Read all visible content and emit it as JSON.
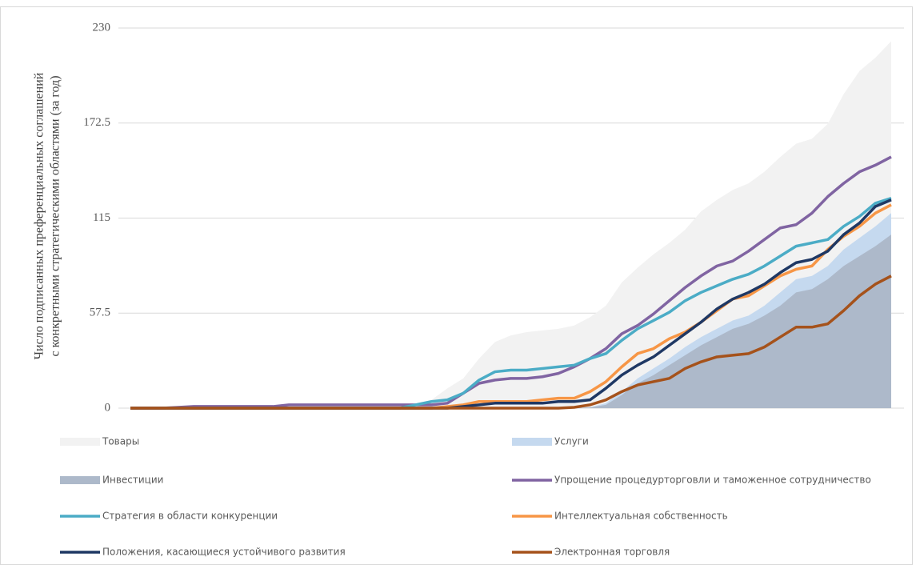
{
  "chart_data": {
    "type": "line",
    "y_label": [
      "Число подписанных преференциальных соглашений",
      "с конкретными стратегическими областями  (за год)"
    ],
    "ylim": [
      0,
      230
    ],
    "yticks": [
      0,
      57.5,
      115,
      172.5,
      230
    ],
    "grid": true,
    "series": [
      {
        "name": "Товары",
        "style": "area",
        "color": "#f2f2f2",
        "values": [
          0,
          0,
          0,
          0.5,
          1,
          1,
          1,
          1,
          1,
          1.5,
          2,
          2,
          2,
          2,
          2,
          2,
          2,
          2,
          2.5,
          5,
          12,
          18,
          30,
          40,
          44,
          46,
          47,
          48,
          50,
          55,
          62,
          76,
          85,
          93,
          100,
          108,
          119,
          126,
          132,
          136,
          143,
          152,
          160,
          163,
          172,
          190,
          204,
          212,
          222
        ]
      },
      {
        "name": "Услуги",
        "style": "area",
        "color": "#c5d9ef",
        "values": [
          0,
          0,
          0,
          0,
          0,
          0,
          0,
          0,
          0,
          0,
          0,
          0,
          0,
          0,
          0,
          0,
          0,
          0,
          0,
          0,
          0,
          0,
          0,
          0,
          0,
          0,
          0,
          0,
          0,
          0.5,
          3,
          10,
          18,
          24,
          30,
          37,
          43,
          48,
          53,
          56,
          62,
          70,
          78,
          80,
          86,
          96,
          103,
          110,
          118
        ]
      },
      {
        "name": "Инвестиции",
        "style": "area",
        "color": "#adb9ca",
        "values": [
          0,
          0,
          0,
          0,
          0,
          0,
          0,
          0,
          0,
          0,
          0,
          0,
          0,
          0,
          0,
          0,
          0,
          0,
          0,
          0,
          0,
          0,
          0,
          0,
          0,
          0,
          0,
          0,
          0,
          0.5,
          2,
          8,
          15,
          20,
          26,
          32,
          38,
          43,
          48,
          51,
          56,
          62,
          70,
          72,
          78,
          86,
          92,
          98,
          105
        ]
      },
      {
        "name": "Упрощение процедурторговли и таможенное сотрудничество",
        "style": "line",
        "color": "#8064a2",
        "values": [
          0,
          0,
          0,
          0.5,
          1,
          1,
          1,
          1,
          1,
          1,
          2,
          2,
          2,
          2,
          2,
          2,
          2,
          2,
          2,
          2,
          3,
          9,
          15,
          17,
          18,
          18,
          19,
          21,
          25,
          30,
          36,
          45,
          50,
          57,
          65,
          73,
          80,
          86,
          89,
          95,
          102,
          109,
          111,
          118,
          128,
          136,
          143,
          147,
          152
        ]
      },
      {
        "name": "Стратегия в области конкуренции",
        "style": "line",
        "color": "#4bacc6",
        "values": [
          0,
          0,
          0,
          0,
          0,
          0,
          0,
          0,
          0,
          0,
          0,
          0,
          0,
          0,
          0,
          0,
          0,
          0,
          2,
          4,
          5,
          9,
          17,
          22,
          23,
          23,
          24,
          25,
          26,
          30,
          33,
          41,
          48,
          53,
          58,
          65,
          70,
          74,
          78,
          81,
          86,
          92,
          98,
          100,
          102,
          110,
          116,
          124,
          127
        ]
      },
      {
        "name": "Интеллектуальная собственность",
        "style": "line",
        "color": "#f79646",
        "values": [
          0,
          0,
          0,
          0,
          0,
          0,
          0,
          0,
          0,
          0,
          0,
          0,
          0,
          0,
          0,
          0,
          0,
          0,
          0,
          0,
          1,
          2,
          4,
          4,
          4,
          4,
          5,
          6,
          6,
          10,
          16,
          25,
          33,
          36,
          42,
          46,
          52,
          59,
          66,
          68,
          74,
          80,
          84,
          86,
          96,
          104,
          110,
          118,
          123
        ]
      },
      {
        "name": "Положения, касающиеся устойчивого развития",
        "style": "line",
        "color": "#1f3864",
        "values": [
          0,
          0,
          0,
          0,
          0,
          0,
          0,
          0,
          0,
          0,
          0,
          0,
          0,
          0,
          0,
          0,
          0,
          0,
          0,
          0,
          0,
          1,
          2,
          3,
          3,
          3,
          3,
          4,
          4,
          5,
          12,
          20,
          26,
          31,
          38,
          45,
          52,
          60,
          66,
          70,
          75,
          82,
          88,
          90,
          95,
          105,
          112,
          122,
          126
        ]
      },
      {
        "name": "Электронная торговля",
        "style": "line",
        "color": "#a5521b",
        "values": [
          0,
          0,
          0,
          0,
          0,
          0,
          0,
          0,
          0,
          0,
          0,
          0,
          0,
          0,
          0,
          0,
          0,
          0,
          0,
          0,
          0,
          0,
          0,
          0,
          0,
          0,
          0,
          0,
          0.5,
          2,
          5,
          10,
          14,
          16,
          18,
          24,
          28,
          31,
          32,
          33,
          37,
          43,
          49,
          49,
          51,
          59,
          68,
          75,
          80
        ]
      }
    ]
  }
}
